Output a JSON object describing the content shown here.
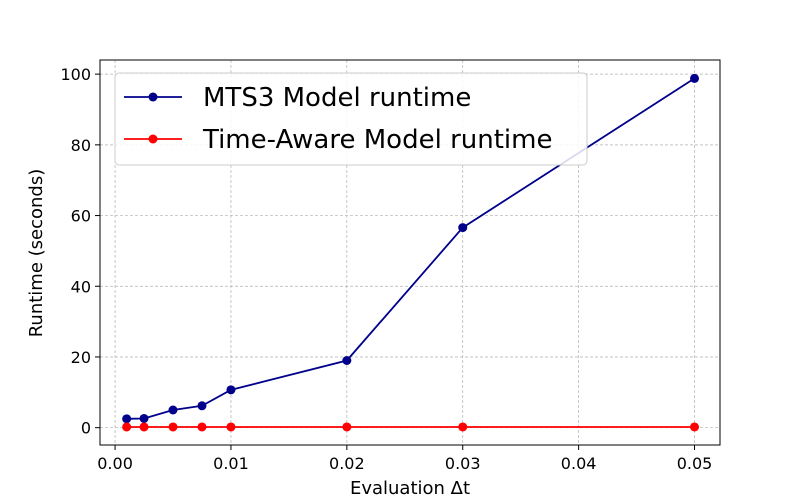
{
  "chart_data": {
    "type": "line",
    "xlabel": "Evaluation Δt",
    "ylabel": "Runtime (seconds)",
    "xlim": [
      -0.0013,
      0.0522
    ],
    "ylim": [
      -4.9,
      104
    ],
    "xticks": [
      0.0,
      0.01,
      0.02,
      0.03,
      0.04,
      0.05
    ],
    "xtick_labels": [
      "0.00",
      "0.01",
      "0.02",
      "0.03",
      "0.04",
      "0.05"
    ],
    "yticks": [
      0,
      20,
      40,
      60,
      80,
      100
    ],
    "ytick_labels": [
      "0",
      "20",
      "40",
      "60",
      "80",
      "100"
    ],
    "grid": true,
    "legend_position": "top-left",
    "series": [
      {
        "name": "MTS3 Model runtime",
        "color": "#00008b",
        "x": [
          0.001,
          0.0025,
          0.005,
          0.0075,
          0.01,
          0.02,
          0.03,
          0.05
        ],
        "y": [
          2.5,
          2.6,
          5.0,
          6.2,
          10.7,
          19.0,
          56.6,
          98.8
        ]
      },
      {
        "name": "Time-Aware Model runtime",
        "color": "#ff0000",
        "x": [
          0.001,
          0.0025,
          0.005,
          0.0075,
          0.01,
          0.02,
          0.03,
          0.05
        ],
        "y": [
          0.2,
          0.2,
          0.2,
          0.2,
          0.2,
          0.2,
          0.2,
          0.2
        ]
      }
    ]
  }
}
